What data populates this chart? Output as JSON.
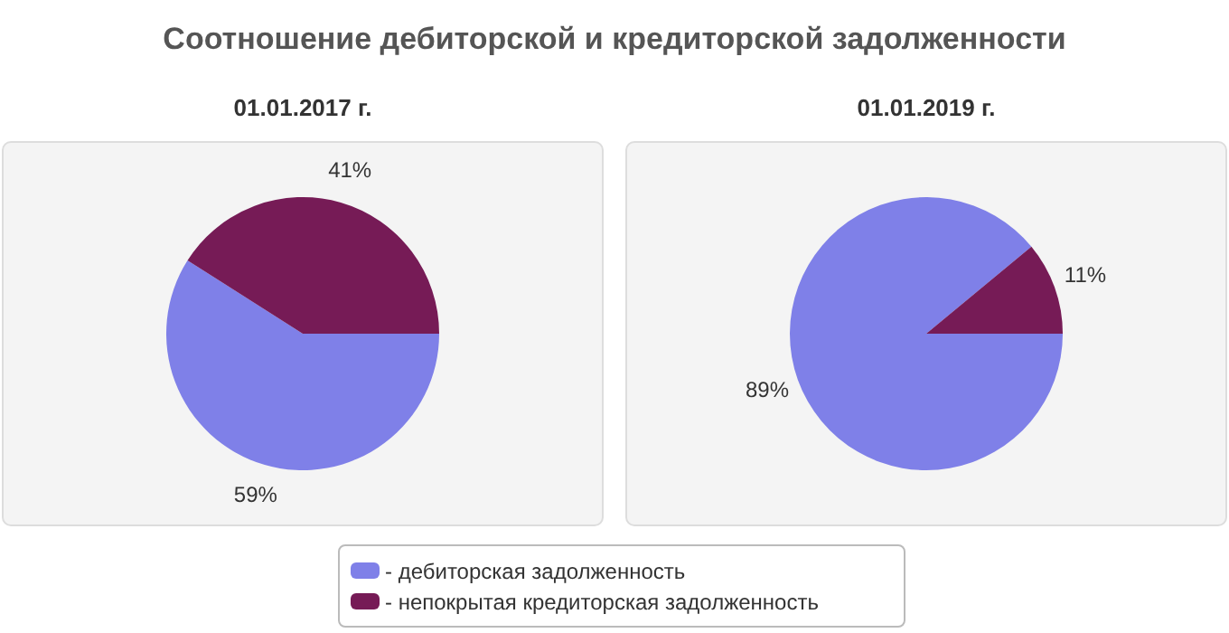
{
  "chart_data": [
    {
      "type": "other",
      "title": "Соотношение дебиторской и кредиторской задолженности"
    },
    {
      "type": "pie",
      "title": "01.01.2017 г.",
      "categories": [
        "- дебиторская задолженность",
        "- непокрытая кредиторская задолженность"
      ],
      "values": [
        59,
        41
      ],
      "colors": [
        "#7f80e8",
        "#761b56"
      ],
      "value_labels": [
        "59%",
        "41%"
      ],
      "legend": "bottom"
    },
    {
      "type": "pie",
      "title": "01.01.2019 г.",
      "categories": [
        null,
        null
      ],
      "values": [
        89,
        11
      ],
      "colors": [
        "#7f80e8",
        "#761b56"
      ],
      "value_labels": [
        "89%",
        "11%"
      ]
    }
  ]
}
